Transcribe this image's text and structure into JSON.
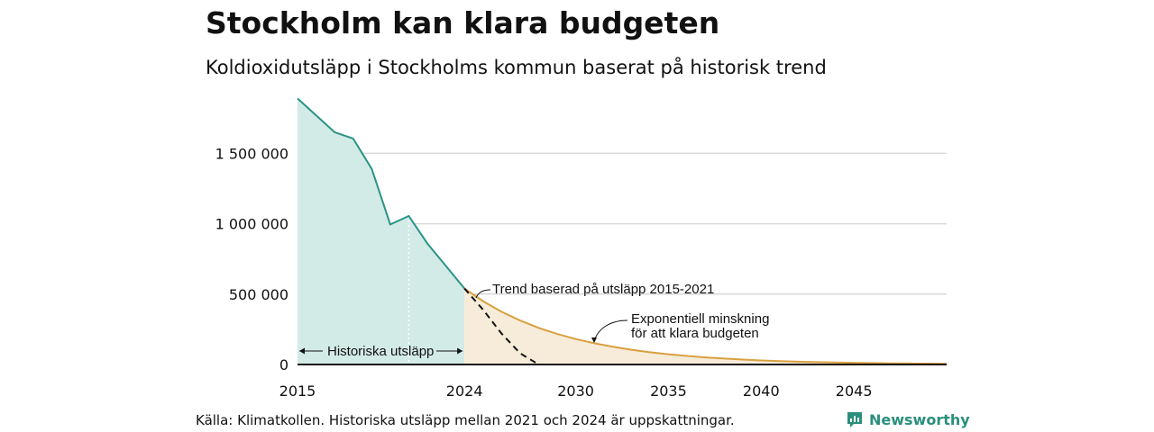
{
  "header": {
    "title": "Stockholm kan klara budgeten",
    "subtitle": "Koldioxidutsläpp i Stockholms kommun baserat på historisk trend"
  },
  "footer": {
    "source": "Källa: Klimatkollen. Historiska utsläpp mellan 2021 och 2024 är uppskattningar.",
    "brand": "Newsworthy"
  },
  "colors": {
    "historical_line": "#2a9487",
    "historical_fill": "#d3ebe6",
    "budget_line": "#d9a040",
    "budget_fill": "#f7ecd9",
    "trend_line": "#111111",
    "grid": "#d9d9d9",
    "brand": "#2a8f7d"
  },
  "chart_data": {
    "type": "area",
    "title": "Stockholm kan klara budgeten",
    "subtitle": "Koldioxidutsläpp i Stockholms kommun baserat på historisk trend",
    "xlabel": "",
    "ylabel": "",
    "xlim": [
      2015,
      2050
    ],
    "ylim": [
      0,
      1950000
    ],
    "x_ticks": [
      2015,
      2024,
      2030,
      2035,
      2040,
      2045
    ],
    "x_tick_labels": [
      "2015",
      "2024",
      "2030",
      "2035",
      "2040",
      "2045"
    ],
    "y_ticks": [
      0,
      500000,
      1000000,
      1500000
    ],
    "y_tick_labels": [
      "0",
      "500 000",
      "1 000 000",
      "1 500 000"
    ],
    "grid": true,
    "series": [
      {
        "name": "Historiska utsläpp",
        "style": "area",
        "x": [
          2015,
          2016,
          2017,
          2018,
          2019,
          2020,
          2021,
          2022,
          2023,
          2024
        ],
        "y": [
          1890000,
          1770000,
          1650000,
          1605000,
          1390000,
          995000,
          1055000,
          860000,
          700000,
          540000
        ]
      },
      {
        "name": "Trend baserad på utsläpp 2015-2021",
        "style": "dashed",
        "x": [
          2024,
          2025,
          2026,
          2027,
          2028
        ],
        "y": [
          540000,
          390000,
          220000,
          80000,
          0
        ]
      },
      {
        "name": "Exponentiell minskning för att klara budgeten",
        "style": "area",
        "x": [
          2024,
          2025,
          2026,
          2027,
          2028,
          2029,
          2030,
          2031,
          2032,
          2033,
          2034,
          2035,
          2036,
          2037,
          2038,
          2039,
          2040,
          2041,
          2042,
          2043,
          2044,
          2045,
          2046,
          2047,
          2048,
          2049,
          2050
        ],
        "y": [
          540000,
          450000,
          375000,
          313000,
          260000,
          217000,
          181000,
          151000,
          126000,
          105000,
          87000,
          73000,
          61000,
          50000,
          42000,
          35000,
          29000,
          24000,
          20000,
          17000,
          14000,
          12000,
          10000,
          8000,
          7000,
          6000,
          5000
        ]
      }
    ],
    "annotations": {
      "historical": "Historiska utsläpp",
      "trend": "Trend baserad på utsläpp 2015-2021",
      "budget_line1": "Exponentiell minskning",
      "budget_line2": "för att klara budgeten"
    }
  }
}
